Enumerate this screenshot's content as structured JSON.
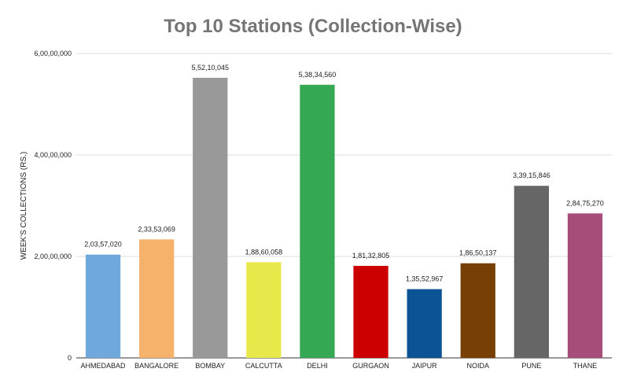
{
  "chart_data": {
    "type": "bar",
    "title": "Top 10 Stations (Collection-Wise)",
    "xlabel": "",
    "ylabel": "WEEK'S COLLECTIONS (RS.)",
    "ylim": [
      0,
      60000000
    ],
    "yticks": [
      {
        "value": 0,
        "label": "0"
      },
      {
        "value": 20000000,
        "label": "2,00,00,000"
      },
      {
        "value": 40000000,
        "label": "4,00,00,000"
      },
      {
        "value": 60000000,
        "label": "6,00,00,000"
      }
    ],
    "grid": true,
    "legend": "none",
    "categories": [
      "AHMEDABAD",
      "BANGALORE",
      "BOMBAY",
      "CALCUTTA",
      "DELHI",
      "GURGAON",
      "JAIPUR",
      "NOIDA",
      "PUNE",
      "THANE"
    ],
    "values": [
      20357020,
      23353069,
      55210045,
      18860058,
      53834560,
      18132805,
      13552967,
      18650137,
      33915846,
      28475270
    ],
    "value_labels": [
      "2,03,57,020",
      "2,33,53,069",
      "5,52,10,045",
      "1,88,60,058",
      "5,38,34,560",
      "1,81,32,805",
      "1,35,52,967",
      "1,86,50,137",
      "3,39,15,846",
      "2,84,75,270"
    ],
    "colors": [
      "#6fa8dc",
      "#f6b26b",
      "#999999",
      "#e9e84a",
      "#34a853",
      "#cc0000",
      "#0b5394",
      "#783f04",
      "#666666",
      "#a64d79"
    ]
  }
}
